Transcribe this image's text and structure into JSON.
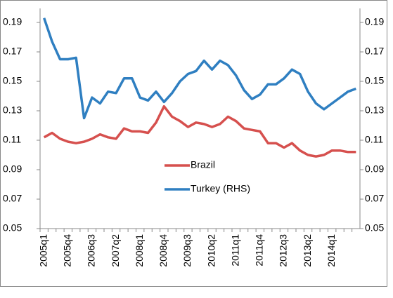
{
  "chart_data": {
    "type": "line",
    "categories": [
      "2005q1",
      null,
      null,
      "2005q4",
      null,
      null,
      "2006q3",
      null,
      null,
      "2007q2",
      null,
      null,
      "2008q1",
      null,
      null,
      "2008q4",
      null,
      null,
      "2009q3",
      null,
      null,
      "2010q2",
      null,
      null,
      "2011q1",
      null,
      null,
      "2011q4",
      null,
      null,
      "2012q3",
      null,
      null,
      "2013q2",
      null,
      null,
      "2014q1",
      null,
      null,
      null
    ],
    "series": [
      {
        "name": "Brazil",
        "color": "#d6504e",
        "values": [
          0.112,
          0.115,
          0.111,
          0.109,
          0.108,
          0.109,
          0.111,
          0.114,
          0.112,
          0.111,
          0.118,
          0.116,
          0.116,
          0.115,
          0.122,
          0.133,
          0.126,
          0.123,
          0.119,
          0.122,
          0.121,
          0.119,
          0.121,
          0.126,
          0.123,
          0.118,
          0.117,
          0.116,
          0.108,
          0.108,
          0.105,
          0.108,
          0.103,
          0.1,
          0.099,
          0.1,
          0.103,
          0.103,
          0.102,
          0.102
        ]
      },
      {
        "name": "Turkey (RHS)",
        "color": "#2f7fc1",
        "axis": "y2",
        "values": [
          0.193,
          0.177,
          0.165,
          0.165,
          0.166,
          0.125,
          0.139,
          0.135,
          0.143,
          0.142,
          0.152,
          0.152,
          0.139,
          0.137,
          0.143,
          0.136,
          0.142,
          0.15,
          0.155,
          0.157,
          0.164,
          0.158,
          0.164,
          0.161,
          0.154,
          0.144,
          0.138,
          0.141,
          0.148,
          0.148,
          0.152,
          0.158,
          0.155,
          0.143,
          0.135,
          0.131,
          0.135,
          0.139,
          0.143,
          0.145
        ]
      }
    ],
    "ylim": [
      0.05,
      0.19
    ],
    "yticks": [
      0.05,
      0.07,
      0.09,
      0.11,
      0.13,
      0.15,
      0.17,
      0.19
    ],
    "y2lim": [
      0.05,
      0.19
    ],
    "y2ticks": [
      0.05,
      0.07,
      0.09,
      0.11,
      0.13,
      0.15,
      0.17,
      0.19
    ],
    "grid": false
  }
}
